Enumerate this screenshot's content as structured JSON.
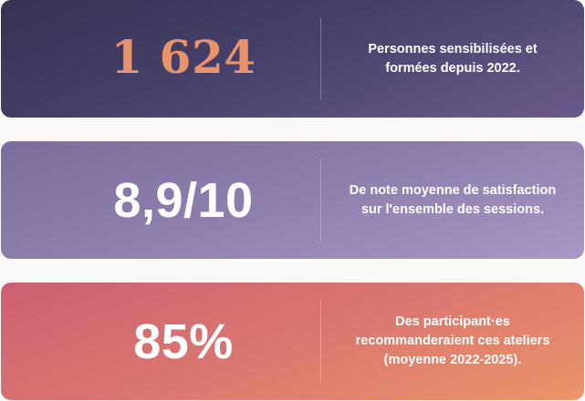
{
  "cards": [
    {
      "value": "1 624",
      "lines": [
        "Personnes sensibilisées et",
        "formées depuis 2022."
      ]
    },
    {
      "value": "8,9/10",
      "lines": [
        "De note moyenne de satisfaction",
        "sur l'ensemble des sessions."
      ]
    },
    {
      "value": "85%",
      "lines": [
        "Des participant·es",
        "recommanderaient ces ateliers",
        "(moyenne 2022-2025)."
      ]
    }
  ],
  "colors": {
    "card1": "#46406a",
    "card2": "#8f7fae",
    "card3": "#da7770",
    "accent": "#e9936a",
    "text": "#ffffff"
  }
}
